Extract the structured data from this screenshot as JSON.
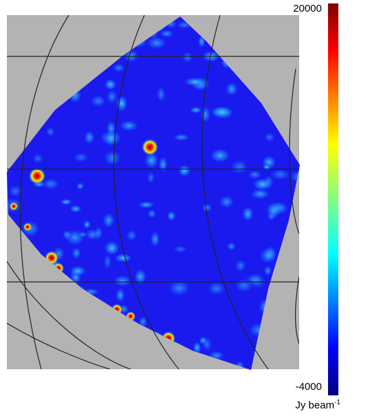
{
  "chart_data": {
    "type": "image",
    "colorbar": {
      "lim": [
        -4000,
        20000
      ],
      "ticks": [
        -4000,
        20000
      ],
      "label": "Jy beam",
      "label_superscript": "-1",
      "colormap": "jet"
    }
  }
}
